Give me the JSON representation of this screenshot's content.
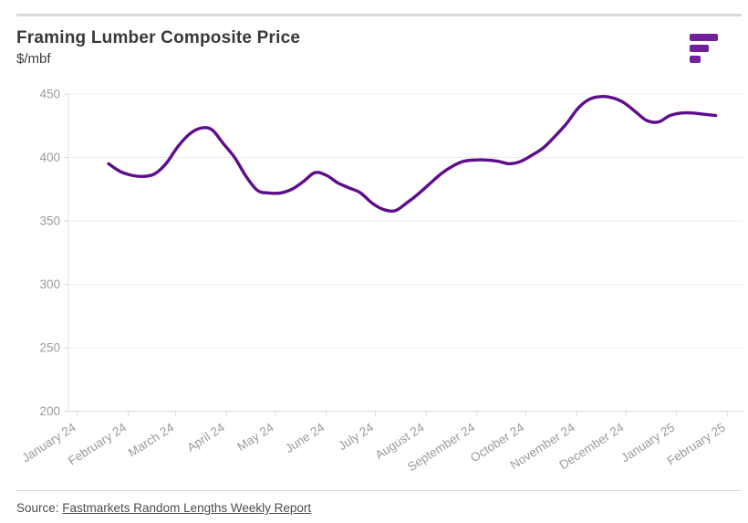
{
  "header": {
    "title": "Framing Lumber Composite Price",
    "subtitle": "$/mbf"
  },
  "logo": {
    "name": "Fastmarkets",
    "color": "#71209B"
  },
  "footer": {
    "source_label": "Source: ",
    "source_link_text": "Fastmarkets Random Lengths Weekly Report"
  },
  "chart_data": {
    "type": "line",
    "title": "Framing Lumber Composite Price",
    "ylabel": "$/mbf",
    "xlabel": "",
    "grid": true,
    "legend": "none",
    "line_color": "#5E0D8C",
    "axis_color": "#d9d9d9",
    "gridline_color": "#ececec",
    "tick_label_color": "#9b9b9b",
    "ylim": [
      200,
      450
    ],
    "y_ticks": [
      450,
      400,
      350,
      300,
      250,
      200
    ],
    "x_tick_labels": [
      "January 24",
      "February 24",
      "March 24",
      "April 24",
      "May 24",
      "June 24",
      "July 24",
      "August 24",
      "September 24",
      "October 24",
      "November 24",
      "December 24",
      "January 25",
      "February 25"
    ],
    "x_tick_days": [
      0,
      31,
      60,
      91,
      121,
      152,
      182,
      213,
      244,
      274,
      305,
      335,
      366,
      397
    ],
    "x_axis_total_days": 407,
    "series": [
      {
        "name": "Framing Lumber Composite Price ($/mbf)",
        "cadence": "weekly",
        "start_day_offset": 19,
        "interval_days": 7,
        "values": [
          395,
          389,
          386,
          385,
          387,
          395,
          408,
          418,
          423,
          422,
          411,
          400,
          385,
          374,
          372,
          372,
          375,
          381,
          388,
          386,
          380,
          376,
          372,
          364,
          359,
          358,
          364,
          371,
          379,
          387,
          393,
          397,
          398,
          398,
          397,
          395,
          397,
          402,
          408,
          417,
          427,
          439,
          446,
          448,
          447,
          443,
          436,
          429,
          428,
          433,
          435,
          435,
          434,
          433
        ]
      }
    ]
  }
}
